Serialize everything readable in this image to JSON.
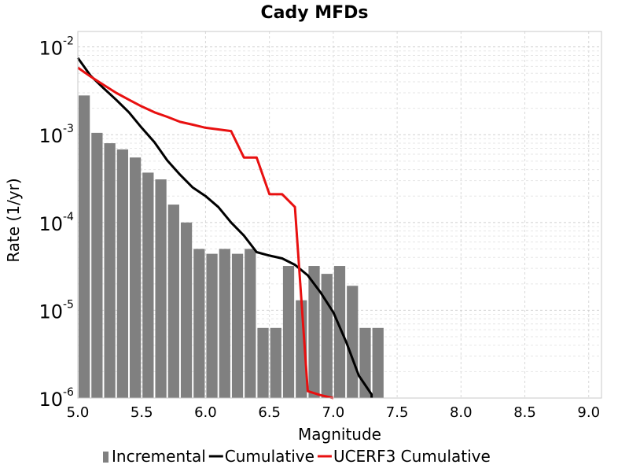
{
  "chart_data": {
    "type": "bar",
    "title": "Cady MFDs",
    "xlabel": "Magnitude",
    "ylabel": "Rate (1/yr)",
    "xlim": [
      5.0,
      9.1
    ],
    "ylim": [
      1e-06,
      0.015
    ],
    "yscale": "log",
    "grid": true,
    "legend_position": "bottom",
    "xticks": [
      "5.0",
      "5.5",
      "6.0",
      "6.5",
      "7.0",
      "7.5",
      "8.0",
      "8.5",
      "9.0"
    ],
    "yticks": [
      {
        "base": "10",
        "exp": "-2",
        "value": 0.01
      },
      {
        "base": "10",
        "exp": "-3",
        "value": 0.001
      },
      {
        "base": "10",
        "exp": "-4",
        "value": 0.0001
      },
      {
        "base": "10",
        "exp": "-5",
        "value": 1e-05
      },
      {
        "base": "10",
        "exp": "-6",
        "value": 1e-06
      }
    ],
    "series": [
      {
        "name": "Incremental",
        "kind": "bar",
        "color": "#808080",
        "x": [
          5.05,
          5.15,
          5.25,
          5.35,
          5.45,
          5.55,
          5.65,
          5.75,
          5.85,
          5.95,
          6.05,
          6.15,
          6.25,
          6.35,
          6.45,
          6.55,
          6.65,
          6.75,
          6.85,
          6.95,
          7.05,
          7.15,
          7.25,
          7.35
        ],
        "values": [
          0.0028,
          0.00105,
          0.0008,
          0.00068,
          0.00055,
          0.00037,
          0.00031,
          0.00016,
          0.0001,
          5e-05,
          4.4e-05,
          5e-05,
          4.4e-05,
          5e-05,
          6.3e-06,
          6.3e-06,
          3.2e-05,
          1.3e-05,
          3.2e-05,
          2.6e-05,
          3.2e-05,
          1.9e-05,
          6.3e-06,
          6.3e-06
        ]
      },
      {
        "name": "Cumulative",
        "kind": "line",
        "color": "#000000",
        "x": [
          5.0,
          5.1,
          5.2,
          5.3,
          5.4,
          5.5,
          5.6,
          5.7,
          5.8,
          5.9,
          6.0,
          6.1,
          6.2,
          6.3,
          6.4,
          6.5,
          6.6,
          6.7,
          6.8,
          6.9,
          7.0,
          7.1,
          7.2,
          7.3,
          7.3
        ],
        "values": [
          0.0075,
          0.0047,
          0.0034,
          0.0025,
          0.0018,
          0.0012,
          0.00082,
          0.00051,
          0.00035,
          0.00025,
          0.0002,
          0.00015,
          0.0001,
          7.1e-05,
          4.6e-05,
          4.2e-05,
          3.9e-05,
          3.3e-05,
          2.5e-05,
          1.6e-05,
          9.5e-06,
          4.4e-06,
          1.8e-06,
          1.1e-06,
          1e-06
        ]
      },
      {
        "name": "UCERF3 Cumulative",
        "kind": "line",
        "color": "#e81010",
        "x": [
          5.0,
          5.1,
          5.2,
          5.3,
          5.4,
          5.5,
          5.6,
          5.7,
          5.8,
          5.9,
          6.0,
          6.1,
          6.2,
          6.3,
          6.4,
          6.5,
          6.6,
          6.7,
          6.8,
          6.9,
          7.0
        ],
        "values": [
          0.0058,
          0.0046,
          0.0037,
          0.003,
          0.0025,
          0.0021,
          0.0018,
          0.0016,
          0.0014,
          0.0013,
          0.0012,
          0.00115,
          0.0011,
          0.00055,
          0.00055,
          0.00021,
          0.00021,
          0.00015,
          1.2e-06,
          1.08e-06,
          1e-06
        ]
      }
    ]
  }
}
